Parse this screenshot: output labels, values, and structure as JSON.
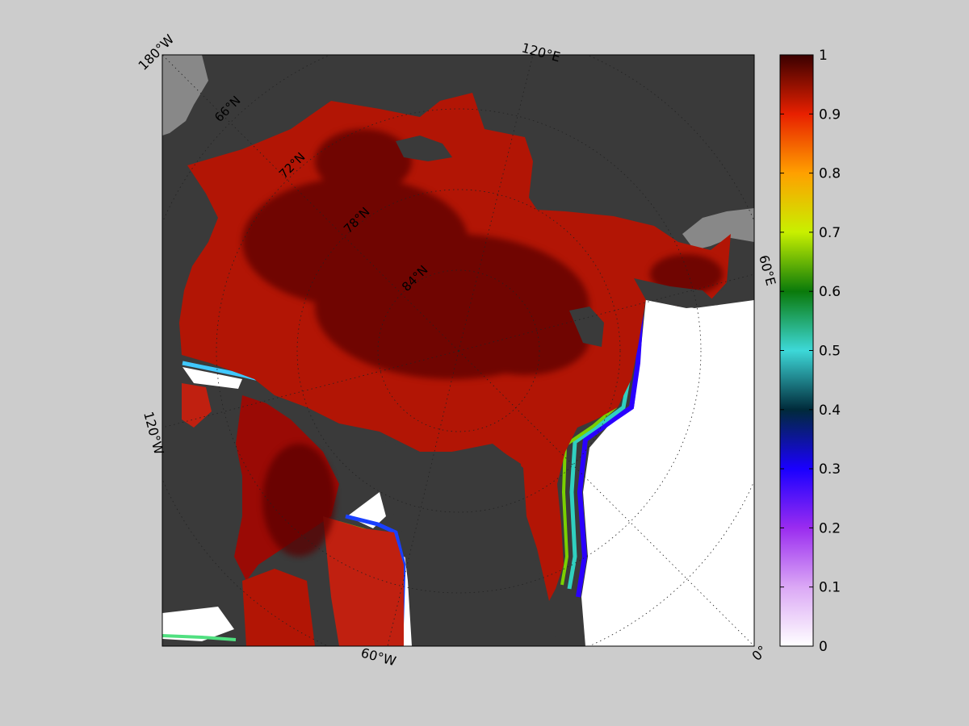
{
  "map": {
    "longitude_labels": {
      "lon_180w": "180°W",
      "lon_120e": "120°E",
      "lon_60e": "60°E",
      "lon_0": "0°",
      "lon_60w": "60°W",
      "lon_120w": "120°W"
    },
    "latitude_labels": {
      "lat_66": "66°N",
      "lat_72": "72°N",
      "lat_78": "78°N",
      "lat_84": "84°N"
    },
    "colors": {
      "land": "#3a3a3a",
      "land_other_hemisphere": "#888888",
      "open_water": "#ffffff",
      "background": "#cccccc"
    }
  },
  "colorbar": {
    "min": 0,
    "max": 1,
    "tick_labels": [
      "0",
      "0.1",
      "0.2",
      "0.3",
      "0.4",
      "0.5",
      "0.6",
      "0.7",
      "0.8",
      "0.9",
      "1"
    ],
    "stops": [
      "#ffffff",
      "#dba8f5",
      "#9a2cf0",
      "#1a00ff",
      "#002a3a",
      "#3dd8d8",
      "#0a7a0a",
      "#c8f000",
      "#ffa000",
      "#e82000",
      "#3a0000"
    ]
  }
}
